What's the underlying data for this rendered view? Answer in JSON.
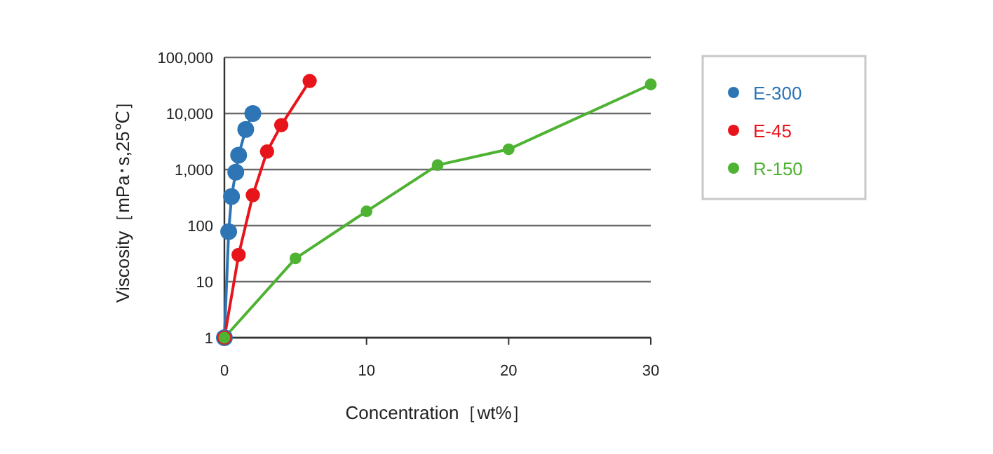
{
  "chart_data": {
    "type": "line",
    "xlabel": "Concentration［wt%］",
    "ylabel": "Viscosity［mPa･s,25℃］",
    "log": "y",
    "xlim": [
      0,
      30
    ],
    "xticks": [
      0,
      10,
      20,
      30
    ],
    "ylim": [
      1,
      100000
    ],
    "yticks": [
      {
        "value": 1,
        "label": "1"
      },
      {
        "value": 10,
        "label": "10"
      },
      {
        "value": 100,
        "label": "100"
      },
      {
        "value": 1000,
        "label": "1,000"
      },
      {
        "value": 10000,
        "label": "10,000"
      },
      {
        "value": 100000,
        "label": "100,000"
      }
    ],
    "grid": "y",
    "legend": "right",
    "marker": "circle",
    "line_style": "solid",
    "series": [
      {
        "name": "E-300",
        "color": "#2e75b6",
        "x": [
          0,
          0.3,
          0.5,
          0.8,
          1,
          1.5,
          2
        ],
        "values": [
          1,
          78,
          330,
          900,
          1800,
          5200,
          10000
        ]
      },
      {
        "name": "E-45",
        "color": "#e8141c",
        "x": [
          0,
          1,
          2,
          3,
          4,
          6
        ],
        "values": [
          1,
          30,
          350,
          2100,
          6200,
          38000
        ]
      },
      {
        "name": "R-150",
        "color": "#4eb232",
        "x": [
          0,
          5,
          10,
          15,
          20,
          30
        ],
        "values": [
          1,
          26,
          180,
          1200,
          2300,
          33000
        ]
      }
    ]
  }
}
